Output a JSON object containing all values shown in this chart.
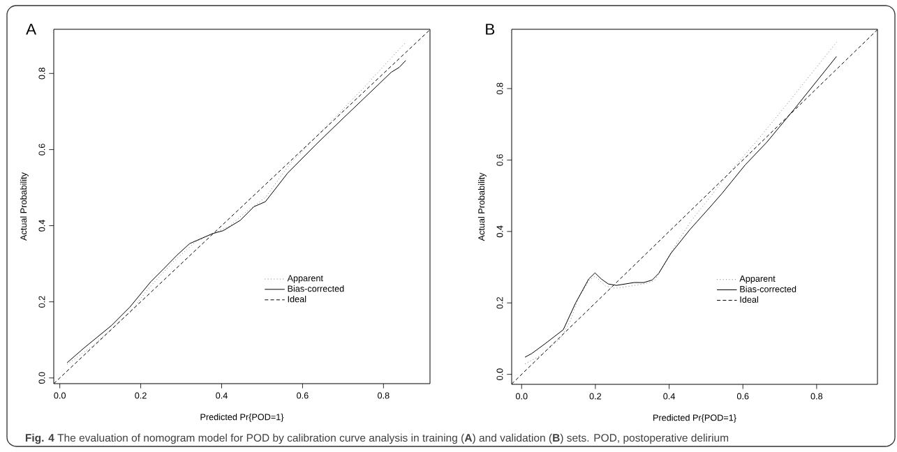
{
  "chart_data": [
    {
      "type": "line",
      "title": "A",
      "xlabel": "Predicted Pr{POD=1}",
      "ylabel": "Actual Probability",
      "xlim": [
        -0.015,
        0.915
      ],
      "ylim": [
        -0.015,
        0.916
      ],
      "xticks": [
        {
          "value": 0,
          "label": "0.0"
        },
        {
          "value": 0.2,
          "label": "0.2"
        },
        {
          "value": 0.4,
          "label": "0.4"
        },
        {
          "value": 0.6,
          "label": "0.6"
        },
        {
          "value": 0.8,
          "label": "0.8"
        }
      ],
      "yticks": [
        {
          "value": 0,
          "label": "0.0"
        },
        {
          "value": 0.2,
          "label": "0.2"
        },
        {
          "value": 0.4,
          "label": "0.4"
        },
        {
          "value": 0.6,
          "label": "0.6"
        },
        {
          "value": 0.8,
          "label": "0.8"
        }
      ],
      "legend": "right",
      "series": [
        {
          "name": "Apparent",
          "color": "#777777",
          "line_style": "dotted",
          "x": [
            0.018,
            0.08,
            0.176,
            0.218,
            0.28,
            0.335,
            0.377,
            0.418,
            0.459,
            0.508,
            0.57,
            0.632,
            0.75,
            0.855
          ],
          "values": [
            0.036,
            0.083,
            0.175,
            0.234,
            0.305,
            0.357,
            0.379,
            0.398,
            0.435,
            0.474,
            0.564,
            0.632,
            0.761,
            0.882
          ]
        },
        {
          "name": "Bias-corrected",
          "color": "#000000",
          "line_style": "solid",
          "x": [
            0.018,
            0.059,
            0.128,
            0.173,
            0.225,
            0.256,
            0.29,
            0.321,
            0.377,
            0.404,
            0.446,
            0.48,
            0.508,
            0.563,
            0.632,
            0.701,
            0.77,
            0.819,
            0.839,
            0.855
          ],
          "values": [
            0.04,
            0.078,
            0.138,
            0.186,
            0.253,
            0.286,
            0.323,
            0.353,
            0.379,
            0.387,
            0.414,
            0.45,
            0.463,
            0.538,
            0.612,
            0.683,
            0.753,
            0.803,
            0.816,
            0.834
          ]
        },
        {
          "name": "Ideal",
          "color": "#000000",
          "line_style": "dashed",
          "x": [
            -0.015,
            0.915
          ],
          "values": [
            -0.015,
            0.915
          ]
        }
      ],
      "annotations": [
        "**Fig. 4** The evaluation of nomogram model for POD by calibration curve analysis in training (**A**) and validation (**B**) sets. POD, postoperative delirium"
      ]
    },
    {
      "type": "line",
      "title": "B",
      "xlabel": "Predicted Pr{POD=1}",
      "ylabel": "Actual Probability",
      "xlim": [
        -0.027,
        0.965
      ],
      "ylim": [
        -0.028,
        0.966
      ],
      "xticks": [
        {
          "value": 0,
          "label": "0.0"
        },
        {
          "value": 0.2,
          "label": "0.2"
        },
        {
          "value": 0.4,
          "label": "0.4"
        },
        {
          "value": 0.6,
          "label": "0.6"
        },
        {
          "value": 0.8,
          "label": "0.8"
        }
      ],
      "yticks": [
        {
          "value": 0,
          "label": "0.0"
        },
        {
          "value": 0.2,
          "label": "0.2"
        },
        {
          "value": 0.4,
          "label": "0.4"
        },
        {
          "value": 0.6,
          "label": "0.6"
        },
        {
          "value": 0.8,
          "label": "0.8"
        }
      ],
      "legend": "right",
      "series": [
        {
          "name": "Apparent",
          "color": "#777777",
          "line_style": "dotted",
          "x": [
            0.009,
            0.05,
            0.105,
            0.131,
            0.153,
            0.183,
            0.199,
            0.228,
            0.254,
            0.294,
            0.339,
            0.361,
            0.413,
            0.46,
            0.561,
            0.635,
            0.724,
            0.854
          ],
          "values": [
            0.029,
            0.052,
            0.1,
            0.147,
            0.211,
            0.263,
            0.275,
            0.247,
            0.241,
            0.247,
            0.255,
            0.263,
            0.355,
            0.43,
            0.562,
            0.65,
            0.762,
            0.93
          ]
        },
        {
          "name": "Bias-corrected",
          "color": "#000000",
          "line_style": "solid",
          "x": [
            0.009,
            0.027,
            0.064,
            0.113,
            0.146,
            0.182,
            0.199,
            0.216,
            0.235,
            0.257,
            0.305,
            0.331,
            0.354,
            0.372,
            0.405,
            0.457,
            0.509,
            0.543,
            0.606,
            0.665,
            0.739,
            0.854
          ],
          "values": [
            0.048,
            0.058,
            0.086,
            0.125,
            0.199,
            0.267,
            0.284,
            0.267,
            0.253,
            0.249,
            0.257,
            0.257,
            0.264,
            0.283,
            0.339,
            0.406,
            0.466,
            0.506,
            0.586,
            0.65,
            0.742,
            0.89
          ]
        },
        {
          "name": "Ideal",
          "color": "#000000",
          "line_style": "dashed",
          "x": [
            -0.027,
            0.965
          ],
          "values": [
            -0.027,
            0.965
          ]
        }
      ]
    }
  ]
}
